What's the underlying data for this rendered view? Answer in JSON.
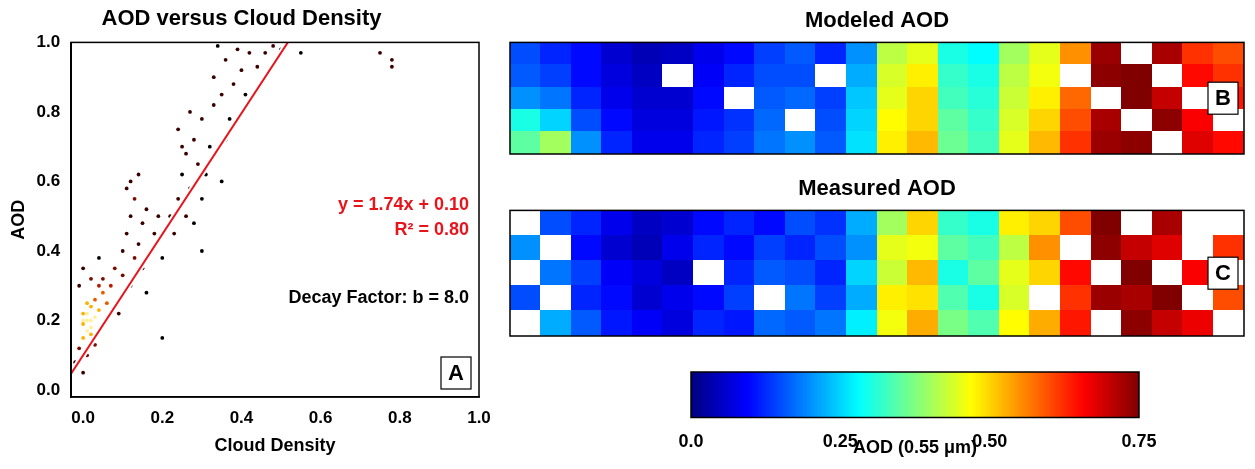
{
  "chart_data": [
    {
      "type": "scatter",
      "title": "AOD versus Cloud Density",
      "x_label": "Cloud Density",
      "y_label": "AOD",
      "panel_label": "A",
      "grid": false,
      "xlim": [
        -0.03,
        1.0
      ],
      "ylim": [
        -0.02,
        1.0
      ],
      "xticks": [
        {
          "value": 0,
          "label": "0.0"
        },
        0.2,
        0.4,
        0.6,
        0.8,
        {
          "value": 1,
          "label": "1.0"
        }
      ],
      "yticks": [
        {
          "value": 0,
          "label": "0.0"
        },
        0.2,
        0.4,
        0.6,
        0.8,
        {
          "value": 1,
          "label": "1.0"
        }
      ],
      "x": [
        0,
        0.01,
        0.02,
        0,
        0.01,
        0.03,
        0.02,
        0,
        0.01,
        0.02,
        0.03,
        0.04,
        0,
        0.01,
        0.02,
        0.05,
        0.04,
        0.06,
        -0.01,
        -0.02,
        0,
        0.01,
        0.03,
        0.05,
        0.07,
        0.08,
        0.06,
        0.02,
        -0.01,
        0,
        0.04,
        0.09,
        0.1,
        0.11,
        0.12,
        0.13,
        0.12,
        0.14,
        0.15,
        0.1,
        0.13,
        0.16,
        0.11,
        0.14,
        0.17,
        0.18,
        0.12,
        0.15,
        0.19,
        0.2,
        0.16,
        0.22,
        0.24,
        0.25,
        0.26,
        0.27,
        0.28,
        0.29,
        0.3,
        0.23,
        0.25,
        0.31,
        0.27,
        0.32,
        0.3,
        0.26,
        0.33,
        0.24,
        0.28,
        0.33,
        0.35,
        0.36,
        0.38,
        0.4,
        0.37,
        0.42,
        0.39,
        0.34,
        0.41,
        0.44,
        0.46,
        0.36,
        0.48,
        0.5,
        0.55,
        0.75,
        0.78,
        0.78,
        0.35,
        0.2,
        0.3
      ],
      "values": [
        0.2,
        0.22,
        0.18,
        0.15,
        0.25,
        0.21,
        0.24,
        0.19,
        0.17,
        0.2,
        0.26,
        0.23,
        0.22,
        0.2,
        0.16,
        0.28,
        0.3,
        0.25,
        0.12,
        0.08,
        0.05,
        0.1,
        0.13,
        0.32,
        0.3,
        0.35,
        0.2,
        0.32,
        0.3,
        0.35,
        0.38,
        0.22,
        0.4,
        0.45,
        0.5,
        0.55,
        0.6,
        0.42,
        0.48,
        0.33,
        0.38,
        0.52,
        0.58,
        0.62,
        0.4,
        0.45,
        0.3,
        0.35,
        0.5,
        0.38,
        0.28,
        0.5,
        0.55,
        0.62,
        0.68,
        0.58,
        0.72,
        0.65,
        0.78,
        0.45,
        0.7,
        0.62,
        0.8,
        0.7,
        0.55,
        0.5,
        0.82,
        0.75,
        0.48,
        0.9,
        0.85,
        0.95,
        0.88,
        0.92,
        0.78,
        0.97,
        0.98,
        0.99,
        0.85,
        0.93,
        0.97,
        0.72,
        0.99,
        0.98,
        0.97,
        0.97,
        0.95,
        0.93,
        0.6,
        0.15,
        0.4
      ],
      "fit_line": {
        "x": [
          -0.03,
          0.52
        ],
        "values": [
          0.048,
          1.005
        ],
        "color": "#e8141c"
      },
      "annotations": [
        {
          "text": "y = 1.74x + 0.10",
          "color": "#e8141c"
        },
        {
          "text": "R² = 0.80",
          "color": "#e8141c"
        },
        {
          "text": "Decay Factor: b = 8.0",
          "color": "#000000"
        }
      ]
    },
    {
      "type": "heatmap",
      "title": "Modeled AOD",
      "panel_label": "B",
      "tick_labels": false,
      "cells": [
        [
          0.15,
          0.12,
          0.1,
          0.06,
          0.04,
          0.05,
          0.08,
          0.1,
          0.14,
          0.16,
          0.12,
          0.2,
          0.42,
          0.45,
          0.3,
          0.28,
          0.4,
          0.45,
          0.55,
          0.73,
          null,
          0.72,
          0.62,
          0.6
        ],
        [
          0.16,
          0.14,
          0.1,
          0.07,
          0.05,
          null,
          0.09,
          0.12,
          0.15,
          0.15,
          null,
          0.22,
          0.44,
          0.48,
          0.32,
          0.3,
          0.42,
          0.46,
          null,
          0.74,
          0.75,
          null,
          0.65,
          0.62
        ],
        [
          0.2,
          0.18,
          0.12,
          0.08,
          0.06,
          0.06,
          0.1,
          null,
          0.16,
          0.17,
          0.14,
          0.24,
          0.45,
          0.5,
          0.33,
          0.31,
          0.43,
          0.48,
          0.58,
          null,
          0.75,
          0.7,
          null,
          0.64
        ],
        [
          0.3,
          0.25,
          0.15,
          0.1,
          0.07,
          0.07,
          0.11,
          0.13,
          0.17,
          null,
          0.15,
          0.25,
          0.47,
          0.5,
          0.35,
          0.32,
          0.44,
          0.5,
          0.6,
          0.72,
          null,
          0.74,
          0.66,
          null
        ],
        [
          0.35,
          0.4,
          0.2,
          0.12,
          0.08,
          0.08,
          0.12,
          0.14,
          0.18,
          0.2,
          0.16,
          0.26,
          0.48,
          0.52,
          0.36,
          0.33,
          0.45,
          0.52,
          0.62,
          0.73,
          0.74,
          null,
          0.68,
          0.65
        ]
      ]
    },
    {
      "type": "heatmap",
      "title": "Measured AOD",
      "panel_label": "C",
      "tick_labels": false,
      "cells": [
        [
          null,
          0.15,
          0.12,
          0.08,
          0.05,
          0.06,
          0.1,
          0.12,
          0.1,
          0.15,
          0.13,
          0.22,
          0.4,
          0.5,
          0.32,
          0.3,
          0.48,
          0.5,
          0.6,
          0.75,
          null,
          0.72,
          null,
          null
        ],
        [
          0.2,
          null,
          0.1,
          0.06,
          0.04,
          0.08,
          0.12,
          0.1,
          0.14,
          0.12,
          0.15,
          0.2,
          0.45,
          0.46,
          0.35,
          0.33,
          0.42,
          0.55,
          null,
          0.74,
          0.7,
          0.68,
          null,
          0.62
        ],
        [
          null,
          0.18,
          0.14,
          0.09,
          0.07,
          0.05,
          null,
          0.12,
          0.16,
          0.15,
          0.12,
          0.25,
          0.43,
          0.52,
          0.3,
          0.35,
          0.45,
          0.5,
          0.65,
          null,
          0.75,
          null,
          0.66,
          null
        ],
        [
          0.15,
          null,
          0.12,
          0.1,
          0.06,
          0.08,
          0.1,
          0.14,
          null,
          0.18,
          0.14,
          0.22,
          0.48,
          0.49,
          0.34,
          0.3,
          0.44,
          null,
          0.62,
          0.73,
          0.72,
          0.75,
          null,
          0.6
        ],
        [
          null,
          0.22,
          0.16,
          0.11,
          0.09,
          0.07,
          0.12,
          0.11,
          0.17,
          0.16,
          0.18,
          0.27,
          0.46,
          0.53,
          0.37,
          0.34,
          0.47,
          0.53,
          0.64,
          null,
          0.74,
          0.7,
          0.67,
          null
        ]
      ]
    }
  ],
  "colorbar": {
    "title": "AOD (0.55 μm)",
    "range": [
      0,
      0.75
    ],
    "ticks": [
      {
        "value": 0,
        "label": "0.0"
      },
      0.25,
      {
        "value": 0.5,
        "label": "0.50"
      },
      0.75
    ]
  }
}
